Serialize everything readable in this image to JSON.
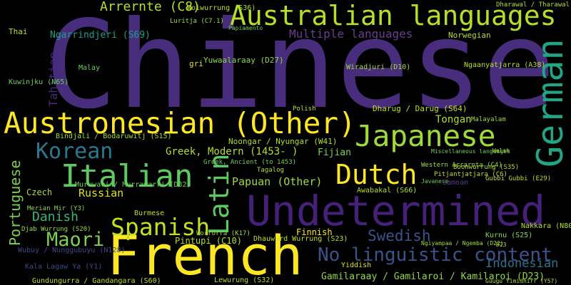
{
  "words": [
    "Chinese",
    "Australian languages",
    "French",
    "Undetermined",
    "Austronesian (Other)",
    "Japanese",
    "Italian",
    "Dutch",
    "German",
    "Korean",
    "Latin",
    "Spanish",
    "Maori",
    "No linguistic content",
    "Swedish",
    "Indonesian",
    "Portuguese",
    "Tahitian",
    "Danish",
    "Russian",
    "Czech",
    "Greek, Modern (1453- )",
    "Papuan (Other)",
    "Fijian",
    "Tongan",
    "Multiple languages",
    "Arrernte (C8)",
    "Ngarrindjeri (S69)",
    "Norwegian",
    "Yuwaalaraay (D27)",
    "Wiradjuri (D10)",
    "Dharug / Darug (S64)",
    "Ngaanyatjarra (A38)",
    "Boonwurrung (S35)",
    "Miscellaneous languages",
    "Gubbi Gubbi (E29)",
    "Western Arrarnta (C4)",
    "Pitjantjatjara (C6)",
    "Awabakal (S66)",
    "Javanese",
    "Samoan",
    "Kurnu (S25)",
    "Nakkara (N80)",
    "Finnish",
    "Dhauwurd Wurrung (S23)",
    "Worrorra (K17)",
    "Pintupi (C10)",
    "Burmese",
    "Muruwari / Murrawarri (D32)",
    "Gamilaraay / Gamilaroi / Kamilaroi (D23)",
    "Yiddish",
    "Lewurung (S32)",
    "Gundungurra / Gandangara (S60)",
    "Wubuy / Nunggubuyu (N128)",
    "Djab Wurrung (S20)",
    "Merian Mir (Y3)",
    "Kala Lagaw Ya (Y1)",
    "Malay",
    "Thai",
    "Kuwinjku (N65)",
    "Bindjali / Bodaruwitj (S15)",
    "gri",
    "Luritja (C7.1)",
    "Woiwurrung (S36)",
    "Noongar / Nyungar (W41)",
    "Greek, Ancient (to 1453)",
    "Tagalog",
    "Polish",
    "Malayalam",
    "Welsh",
    "Ngiyampaa / Ngemba (D22)",
    "D23",
    "Dharawal / Tharawal (S59)",
    "Papiamento",
    "Guugu Yimidhirr (Y57)"
  ]
}
